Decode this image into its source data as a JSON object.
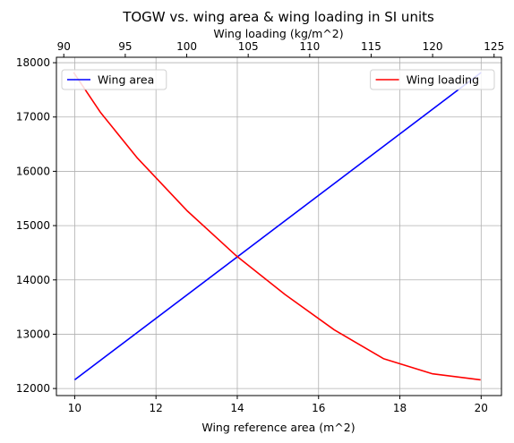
{
  "chart_data": {
    "type": "line",
    "title": "TOGW vs. wing area & wing loading in SI units",
    "xlabel": "Wing reference area (m^2)",
    "x2label": "Wing loading (kg/m^2)",
    "ylabel": "",
    "xlim": [
      9.55,
      20.5
    ],
    "x2lim": [
      89.4,
      125.6
    ],
    "ylim": [
      11870,
      18100
    ],
    "xticks": [
      10,
      12,
      14,
      16,
      18,
      20
    ],
    "x2ticks": [
      90,
      95,
      100,
      105,
      110,
      115,
      120,
      125
    ],
    "yticks": [
      12000,
      13000,
      14000,
      15000,
      16000,
      17000,
      18000
    ],
    "grid": true,
    "series": [
      {
        "name": "Wing area",
        "axis": "bottom",
        "color": "#0000ff",
        "legend_position": "upper-left",
        "x": [
          10,
          20
        ],
        "y": [
          12160,
          17820
        ]
      },
      {
        "name": "Wing loading",
        "axis": "top",
        "color": "#ff0000",
        "legend_position": "upper-right",
        "x": [
          90.8,
          93,
          96,
          100,
          104,
          108,
          112,
          116,
          120,
          123.9
        ],
        "y": [
          17820,
          17080,
          16240,
          15280,
          14450,
          13730,
          13080,
          12550,
          12270,
          12160
        ]
      }
    ]
  }
}
